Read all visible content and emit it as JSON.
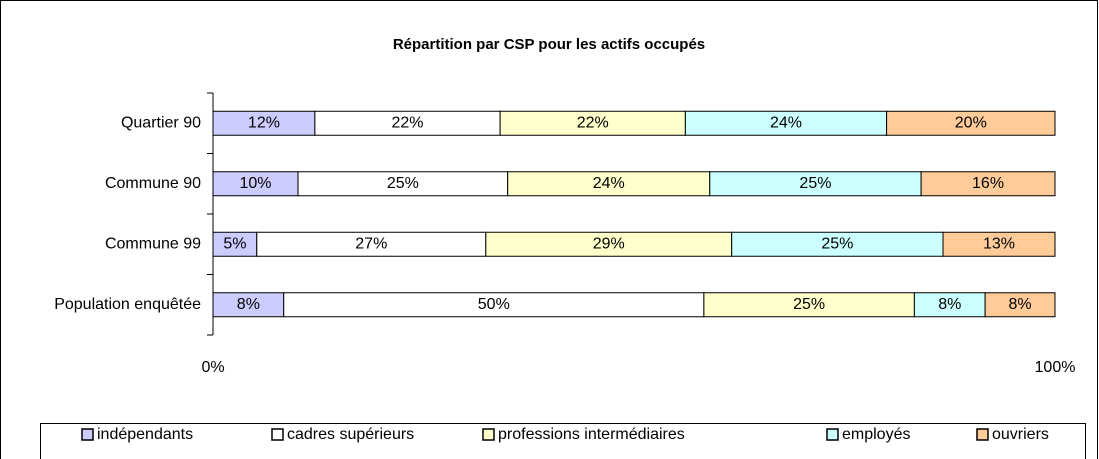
{
  "chart_data": {
    "type": "stacked-bar-horizontal",
    "title": "Répartition par CSP pour les actifs occupés",
    "categories": [
      "Quartier 90",
      "Commune 90",
      "Commune 99",
      "Population enquêtée"
    ],
    "series": [
      {
        "name": "indépendants",
        "color": "#ccccff",
        "values": [
          12.1,
          10.1,
          5.2,
          8.4
        ],
        "value_labels": [
          "12%",
          "10%",
          "5%",
          "8%"
        ]
      },
      {
        "name": "cadres supérieurs",
        "color": "#ffffff",
        "values": [
          22,
          24.9,
          27.2,
          49.9
        ],
        "value_labels": [
          "22%",
          "25%",
          "27%",
          "50%"
        ]
      },
      {
        "name": "professions intermédiaires",
        "color": "#ffffcc",
        "values": [
          22,
          24,
          29.2,
          25
        ],
        "value_labels": [
          "22%",
          "24%",
          "29%",
          "25%"
        ]
      },
      {
        "name": "employés",
        "color": "#ccffff",
        "values": [
          23.9,
          25.1,
          25.1,
          8.4
        ],
        "value_labels": [
          "24%",
          "25%",
          "25%",
          "8%"
        ]
      },
      {
        "name": "ouvriers",
        "color": "#ffcc99",
        "values": [
          20,
          15.9,
          13.3,
          8.3
        ],
        "value_labels": [
          "20%",
          "16%",
          "13%",
          "8%"
        ]
      }
    ],
    "xlim": [
      0,
      100
    ],
    "xticks": [
      {
        "value": 0,
        "label": "0%"
      },
      {
        "value": 100,
        "label": "100%"
      }
    ],
    "legend": "bottom"
  }
}
